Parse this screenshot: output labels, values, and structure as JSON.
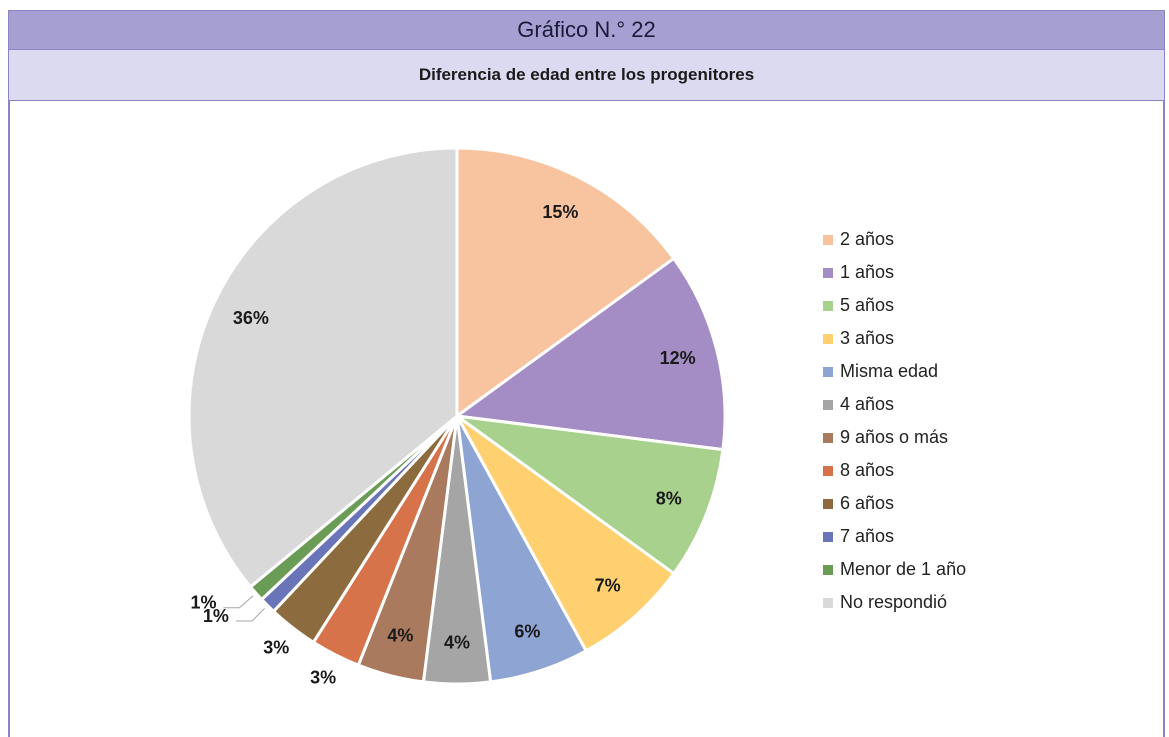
{
  "chart_data": {
    "type": "pie",
    "title": "Gráfico N.° 22",
    "subtitle": "Diferencia de edad entre los progenitores",
    "categories": [
      "2 años",
      "1 años",
      "5 años",
      "3 años",
      "Misma edad",
      "4 años",
      "9 años o más",
      "8 años",
      "6 años",
      "7 años",
      "Menor de 1 año",
      "No respondió"
    ],
    "values": [
      15,
      12,
      8,
      7,
      6,
      4,
      4,
      3,
      3,
      1,
      1,
      36
    ],
    "value_labels": [
      "15%",
      "12%",
      "8%",
      "7%",
      "6%",
      "4%",
      "4%",
      "3%",
      "3%",
      "1%",
      "1%",
      "36%"
    ],
    "colors": [
      "#f8c4a0",
      "#a48cc4",
      "#a9d18e",
      "#ffd070",
      "#8ea4d2",
      "#a5a5a5",
      "#a97a5e",
      "#d6734a",
      "#8c6c3e",
      "#6a74b8",
      "#6b9c56",
      "#d9d9d9"
    ]
  }
}
